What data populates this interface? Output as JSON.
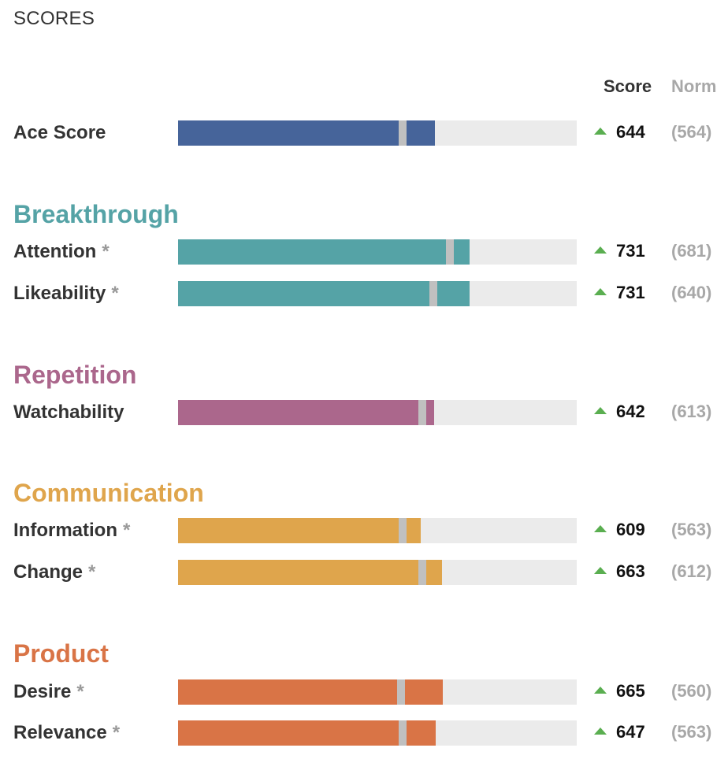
{
  "chart_data": {
    "type": "bar",
    "title": "SCORES",
    "column_headers": {
      "score": "Score",
      "norm": "Norm"
    },
    "xlim": [
      0,
      1000
    ],
    "colors": {
      "ace": "#46649a",
      "breakthrough": "#55a3a6",
      "repetition": "#ab678c",
      "communication": "#dfa54c",
      "product": "#d97446",
      "track": "#ebebeb",
      "norm_marker": "#c0c0c0",
      "up_arrow": "#5aae50"
    },
    "rows": [
      {
        "label": "Ace Score",
        "asterisk": false,
        "group": "ace",
        "score": 644,
        "norm": 564,
        "score_text": "644",
        "norm_text": "(564)"
      },
      {
        "label": "Attention",
        "asterisk": true,
        "group": "breakthrough",
        "score": 731,
        "norm": 681,
        "score_text": "731",
        "norm_text": "(681)"
      },
      {
        "label": "Likeability",
        "asterisk": true,
        "group": "breakthrough",
        "score": 731,
        "norm": 640,
        "score_text": "731",
        "norm_text": "(640)"
      },
      {
        "label": "Watchability",
        "asterisk": false,
        "group": "repetition",
        "score": 642,
        "norm": 613,
        "score_text": "642",
        "norm_text": "(613)"
      },
      {
        "label": "Information",
        "asterisk": true,
        "group": "communication",
        "score": 609,
        "norm": 563,
        "score_text": "609",
        "norm_text": "(563)"
      },
      {
        "label": "Change",
        "asterisk": true,
        "group": "communication",
        "score": 663,
        "norm": 612,
        "score_text": "663",
        "norm_text": "(612)"
      },
      {
        "label": "Desire",
        "asterisk": true,
        "group": "product",
        "score": 665,
        "norm": 560,
        "score_text": "665",
        "norm_text": "(560)"
      },
      {
        "label": "Relevance",
        "asterisk": true,
        "group": "product",
        "score": 647,
        "norm": 563,
        "score_text": "647",
        "norm_text": "(563)"
      }
    ],
    "sections": [
      {
        "key": "breakthrough",
        "label": "Breakthrough"
      },
      {
        "key": "repetition",
        "label": "Repetition"
      },
      {
        "key": "communication",
        "label": "Communication"
      },
      {
        "key": "product",
        "label": "Product"
      }
    ],
    "asterisk_text": "*"
  }
}
